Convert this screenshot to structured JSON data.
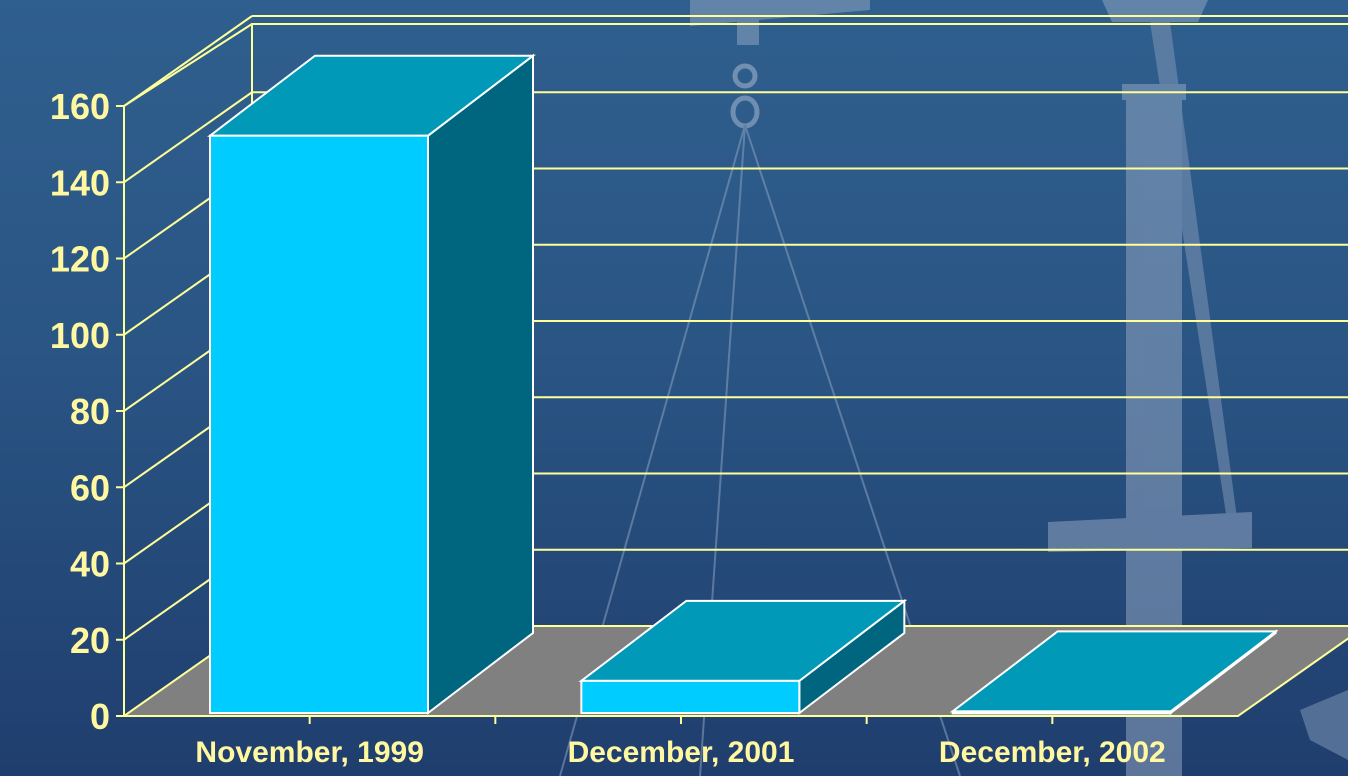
{
  "chart_data": {
    "type": "bar",
    "style": "3d",
    "categories": [
      "November, 1999",
      "December, 2001",
      "December, 2002"
    ],
    "values": [
      153,
      10,
      2
    ],
    "ylim": [
      0,
      160
    ],
    "yticks": [
      "0",
      "20",
      "40",
      "60",
      "80",
      "100",
      "120",
      "140",
      "160"
    ],
    "grid": true,
    "legend": "none",
    "colors": {
      "bar_front": "#00ccff",
      "bar_top": "#0099b8",
      "bar_side": "#006680",
      "floor": "#808080",
      "grid": "#ffff99",
      "label": "#fff8a0",
      "background": "#2a5584"
    }
  }
}
